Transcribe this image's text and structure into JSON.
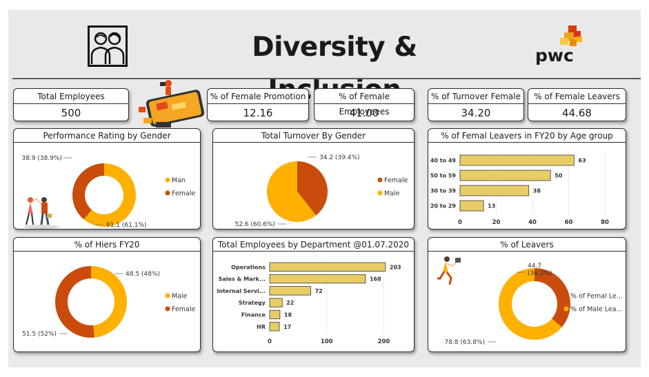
{
  "header": {
    "title": "Diversity & Inclusion",
    "brand": "pwc"
  },
  "colors": {
    "man": "#ffb000",
    "female": "#c94c0c",
    "bar": "#e8cc66",
    "bar_stroke": "#3a3a3a",
    "bg": "#e9e9e9"
  },
  "kpis": [
    {
      "label": "Total Employees",
      "value": "500"
    },
    {
      "label": "% of Female Promotion",
      "value": "12.16"
    },
    {
      "label": "% of Female Employeees",
      "value": "41.00"
    },
    {
      "label": "% of Turnover Female",
      "value": "34.20"
    },
    {
      "label": "% of Female Leavers",
      "value": "44.68"
    }
  ],
  "chart_data": [
    {
      "type": "pie",
      "title": "Performance Rating by Gender",
      "donut": true,
      "slices": [
        {
          "name": "Man",
          "value": 61.1,
          "label": "61.1 (61.1%)",
          "color": "#ffb000"
        },
        {
          "name": "Female",
          "value": 38.9,
          "label": "38.9 (38.9%)",
          "color": "#c94c0c"
        }
      ],
      "legend": [
        "Man",
        "Female"
      ]
    },
    {
      "type": "pie",
      "title": "Total Turnover By Gender",
      "donut": false,
      "slices": [
        {
          "name": "Female",
          "value": 34.2,
          "label": "34.2 (39.4%)",
          "color": "#c94c0c"
        },
        {
          "name": "Male",
          "value": 52.6,
          "label": "52.6 (60.6%)",
          "color": "#ffb000"
        }
      ],
      "legend": [
        "Female",
        "Male"
      ]
    },
    {
      "type": "bar",
      "orientation": "horizontal",
      "title": "% of Femal Leavers in FY20 by Age group",
      "categories": [
        "40 to 49",
        "50 to 59",
        "30 to 39",
        "20 to 29"
      ],
      "values": [
        63,
        50,
        38,
        13
      ],
      "xlim": [
        0,
        80
      ],
      "ticks": [
        0,
        20,
        40,
        60,
        80
      ]
    },
    {
      "type": "pie",
      "title": "% of Hiers FY20",
      "donut": true,
      "slices": [
        {
          "name": "Male",
          "value": 48.5,
          "label": "48.5 (48%)",
          "color": "#ffb000"
        },
        {
          "name": "Female",
          "value": 51.5,
          "label": "51.5 (52%)",
          "color": "#c94c0c"
        }
      ],
      "legend": [
        "Male",
        "Female"
      ]
    },
    {
      "type": "bar",
      "orientation": "horizontal",
      "title": "Total Employees by Department @01.07.2020",
      "categories": [
        "Operations",
        "Sales & Mark...",
        "Internal Servi...",
        "Strategy",
        "Finance",
        "HR"
      ],
      "values": [
        203,
        168,
        72,
        22,
        18,
        17
      ],
      "xlim": [
        0,
        220
      ],
      "ticks": [
        0,
        100,
        200
      ]
    },
    {
      "type": "pie",
      "title": "% of Leavers",
      "donut": true,
      "slices": [
        {
          "name": "% of Femal Le...",
          "value": 44.7,
          "label1": "44.7",
          "label2": "(36.2%)",
          "color": "#c94c0c"
        },
        {
          "name": "% of Male Lea...",
          "value": 78.8,
          "label": "78.8 (63.8%)",
          "color": "#ffb000"
        }
      ],
      "legend": [
        "% of Femal Le...",
        "% of Male Lea..."
      ]
    }
  ]
}
